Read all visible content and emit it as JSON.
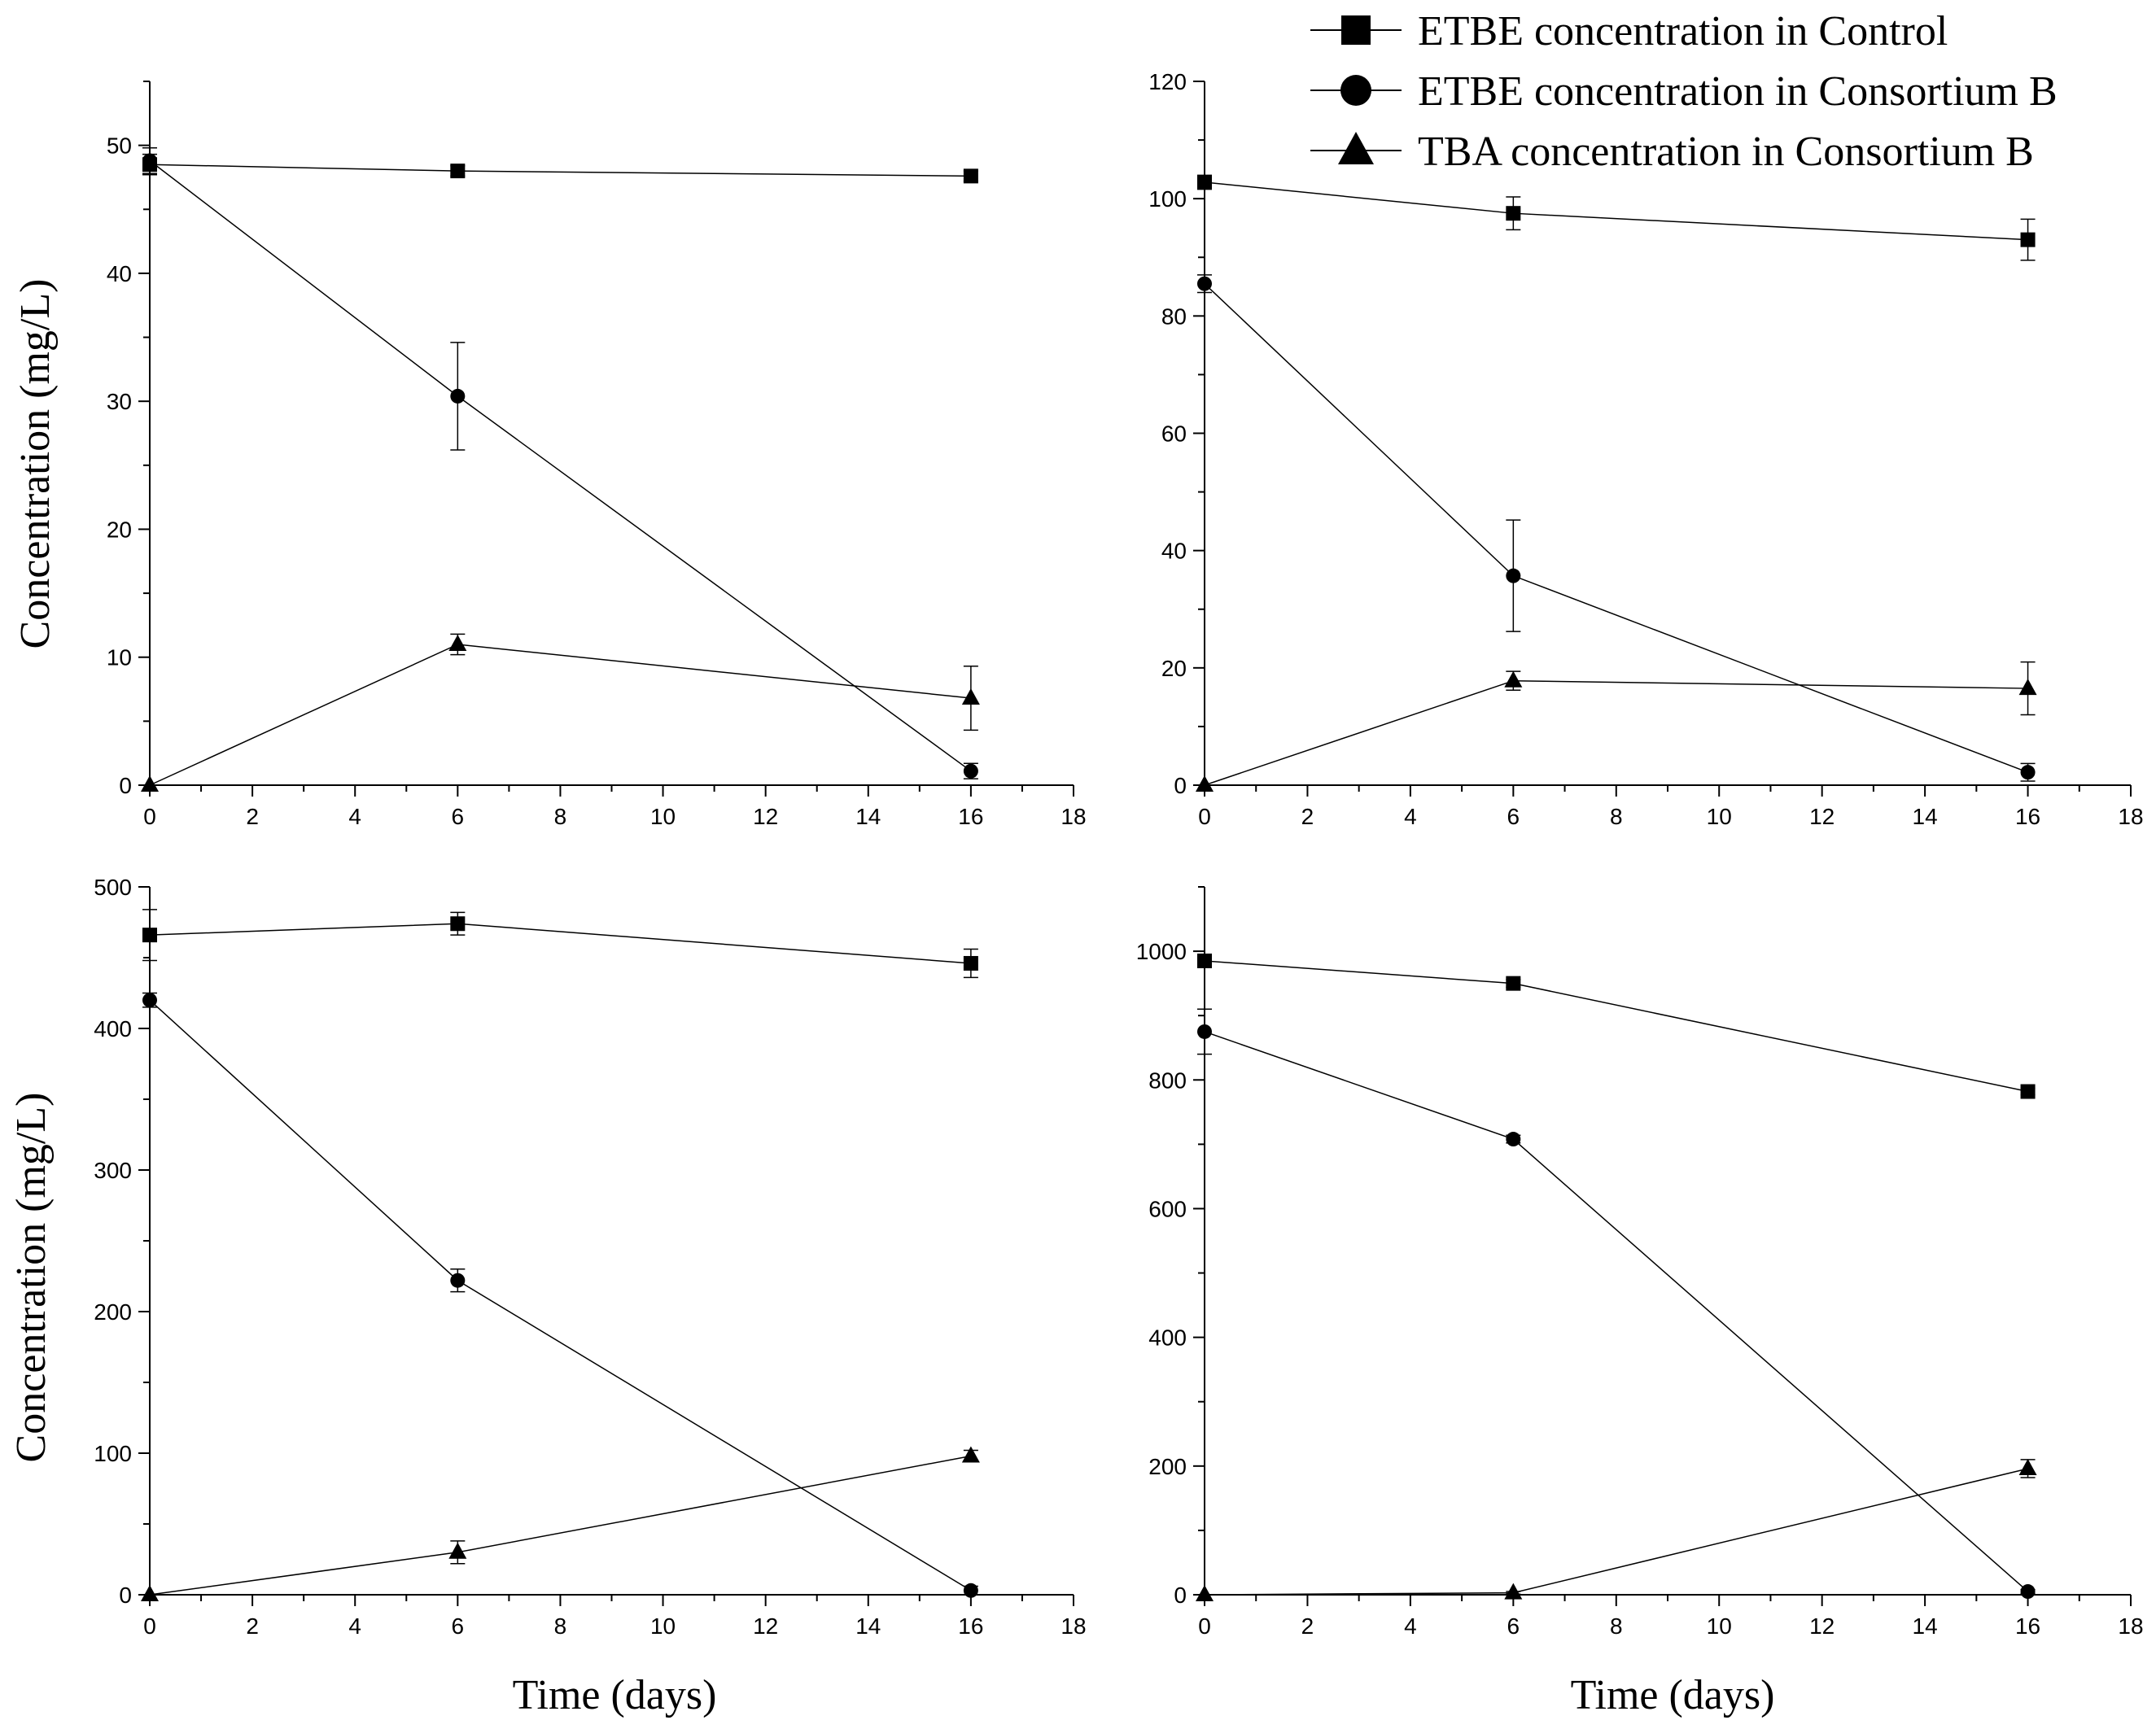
{
  "legend": {
    "entries": [
      {
        "label": "ETBE concentration in Control",
        "marker": "square"
      },
      {
        "label": "ETBE concentration in Consortium B",
        "marker": "circle"
      },
      {
        "label": "TBA concentration in Consortium B",
        "marker": "triangle"
      }
    ]
  },
  "chart_data": [
    {
      "type": "line",
      "panel": "top-left",
      "xlabel": "",
      "ylabel": "Concentration (mg/L)",
      "xlim": [
        0,
        18
      ],
      "ylim": [
        0,
        55
      ],
      "xticks": [
        0,
        2,
        4,
        6,
        8,
        10,
        12,
        14,
        16,
        18
      ],
      "yticks": [
        0,
        10,
        20,
        30,
        40,
        50
      ],
      "x": [
        0,
        6,
        16
      ],
      "series": [
        {
          "name": "ETBE concentration in Control",
          "marker": "square",
          "values": [
            48.5,
            48.0,
            47.6
          ],
          "errors": [
            0.8,
            0.4,
            0.4
          ]
        },
        {
          "name": "ETBE concentration in Consortium B",
          "marker": "circle",
          "values": [
            48.8,
            30.4,
            1.1
          ],
          "errors": [
            1.0,
            4.2,
            0.6
          ]
        },
        {
          "name": "TBA concentration in Consortium B",
          "marker": "triangle",
          "values": [
            0,
            11.0,
            6.8
          ],
          "errors": [
            0,
            0.8,
            2.5
          ]
        }
      ]
    },
    {
      "type": "line",
      "panel": "top-right",
      "xlabel": "",
      "ylabel": "",
      "xlim": [
        0,
        18
      ],
      "ylim": [
        0,
        120
      ],
      "xticks": [
        0,
        2,
        4,
        6,
        8,
        10,
        12,
        14,
        16,
        18
      ],
      "yticks": [
        0,
        20,
        40,
        60,
        80,
        100,
        120
      ],
      "x": [
        0,
        6,
        16
      ],
      "series": [
        {
          "name": "ETBE concentration in Control",
          "marker": "square",
          "values": [
            102.8,
            97.5,
            93.0
          ],
          "errors": [
            1.2,
            2.8,
            3.5
          ]
        },
        {
          "name": "ETBE concentration in Consortium B",
          "marker": "circle",
          "values": [
            85.5,
            35.7,
            2.2
          ],
          "errors": [
            1.5,
            9.5,
            1.5
          ]
        },
        {
          "name": "TBA concentration in Consortium B",
          "marker": "triangle",
          "values": [
            0,
            17.8,
            16.5
          ],
          "errors": [
            0,
            1.6,
            4.5
          ]
        }
      ]
    },
    {
      "type": "line",
      "panel": "bottom-left",
      "xlabel": "Time (days)",
      "ylabel": "Concentration (mg/L)",
      "xlim": [
        0,
        18
      ],
      "ylim": [
        0,
        500
      ],
      "xticks": [
        0,
        2,
        4,
        6,
        8,
        10,
        12,
        14,
        16,
        18
      ],
      "yticks": [
        0,
        100,
        200,
        300,
        400,
        500
      ],
      "x": [
        0,
        6,
        16
      ],
      "series": [
        {
          "name": "ETBE concentration in Control",
          "marker": "square",
          "values": [
            466,
            474,
            446
          ],
          "errors": [
            18,
            8,
            10
          ]
        },
        {
          "name": "ETBE concentration in Consortium B",
          "marker": "circle",
          "values": [
            420,
            222,
            3
          ],
          "errors": [
            5,
            8,
            3
          ]
        },
        {
          "name": "TBA concentration in Consortium B",
          "marker": "triangle",
          "values": [
            0,
            30,
            98
          ],
          "errors": [
            0,
            8,
            4
          ]
        }
      ]
    },
    {
      "type": "line",
      "panel": "bottom-right",
      "xlabel": "Time (days)",
      "ylabel": "",
      "xlim": [
        0,
        18
      ],
      "ylim": [
        0,
        1100
      ],
      "xticks": [
        0,
        2,
        4,
        6,
        8,
        10,
        12,
        14,
        16,
        18
      ],
      "yticks": [
        0,
        200,
        400,
        600,
        800,
        1000
      ],
      "x": [
        0,
        6,
        16
      ],
      "series": [
        {
          "name": "ETBE concentration in Control",
          "marker": "square",
          "values": [
            985,
            950,
            782
          ],
          "errors": [
            10,
            6,
            5
          ]
        },
        {
          "name": "ETBE concentration in Consortium B",
          "marker": "circle",
          "values": [
            875,
            708,
            5
          ],
          "errors": [
            35,
            6,
            3
          ]
        },
        {
          "name": "TBA concentration in Consortium B",
          "marker": "triangle",
          "values": [
            0,
            3,
            196
          ],
          "errors": [
            0,
            2,
            14
          ]
        }
      ]
    }
  ]
}
